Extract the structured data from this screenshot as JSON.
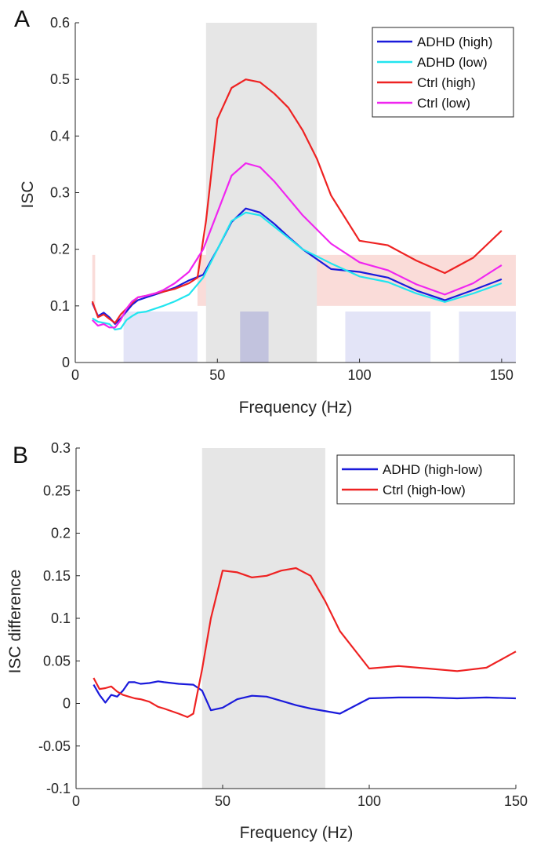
{
  "chart_data": [
    {
      "type": "line",
      "panel_label": "A",
      "xlabel": "Frequency (Hz)",
      "ylabel": "ISC",
      "xlim": [
        0,
        155
      ],
      "ylim": [
        0,
        0.6
      ],
      "xticks": [
        0,
        50,
        100,
        150
      ],
      "xtick_labels": [
        "0",
        "50",
        "100",
        "150"
      ],
      "yticks": [
        0,
        0.1,
        0.2,
        0.3,
        0.4,
        0.5,
        0.6
      ],
      "ytick_labels": [
        "0",
        "0.1",
        "0.2",
        "0.3",
        "0.4",
        "0.5",
        "0.6"
      ],
      "grid": false,
      "legend": "top-right",
      "gray_band": {
        "x": [
          46,
          85
        ],
        "y": [
          0,
          0.6
        ],
        "color": "#e6e6e6"
      },
      "red_band": {
        "x": [
          43,
          155
        ],
        "y": [
          0.1,
          0.19
        ],
        "color": "#fadcd9"
      },
      "red_band_edge": {
        "x": [
          6,
          7
        ],
        "y": [
          0.1,
          0.19
        ],
        "color": "#fadcd9"
      },
      "blue_bands": [
        {
          "x": [
            17,
            43
          ],
          "y": [
            0,
            0.09
          ],
          "color": "#e3e4f7"
        },
        {
          "x": [
            58,
            68
          ],
          "y": [
            0,
            0.09
          ],
          "color": "#c2c3de"
        },
        {
          "x": [
            95,
            125
          ],
          "y": [
            0,
            0.09
          ],
          "color": "#e3e4f7"
        },
        {
          "x": [
            135,
            155
          ],
          "y": [
            0,
            0.09
          ],
          "color": "#e3e4f7"
        }
      ],
      "series": [
        {
          "name": "ADHD (high)",
          "color": "#1a1adb",
          "x": [
            6,
            8,
            10,
            12,
            14,
            16,
            18,
            20,
            22,
            25,
            28,
            31,
            35,
            40,
            45,
            50,
            55,
            60,
            65,
            70,
            75,
            80,
            90,
            100,
            110,
            120,
            130,
            140,
            150
          ],
          "y": [
            0.105,
            0.082,
            0.088,
            0.08,
            0.068,
            0.078,
            0.09,
            0.102,
            0.11,
            0.115,
            0.12,
            0.125,
            0.132,
            0.145,
            0.155,
            0.2,
            0.248,
            0.272,
            0.265,
            0.245,
            0.222,
            0.2,
            0.165,
            0.16,
            0.15,
            0.127,
            0.11,
            0.128,
            0.147
          ]
        },
        {
          "name": "ADHD (low)",
          "color": "#22e5ef",
          "x": [
            6,
            8,
            10,
            12,
            14,
            16,
            18,
            20,
            22,
            25,
            28,
            31,
            35,
            40,
            45,
            50,
            55,
            60,
            65,
            70,
            75,
            80,
            90,
            100,
            110,
            120,
            130,
            140,
            150
          ],
          "y": [
            0.078,
            0.072,
            0.07,
            0.068,
            0.058,
            0.06,
            0.075,
            0.082,
            0.088,
            0.09,
            0.095,
            0.1,
            0.108,
            0.12,
            0.15,
            0.2,
            0.25,
            0.265,
            0.26,
            0.24,
            0.22,
            0.2,
            0.175,
            0.152,
            0.142,
            0.122,
            0.107,
            0.122,
            0.14
          ]
        },
        {
          "name": "Ctrl (high)",
          "color": "#ee2222",
          "x": [
            6,
            8,
            10,
            12,
            14,
            16,
            18,
            20,
            22,
            25,
            28,
            31,
            35,
            40,
            43,
            46,
            50,
            55,
            60,
            65,
            70,
            75,
            80,
            85,
            90,
            100,
            110,
            120,
            130,
            140,
            150
          ],
          "y": [
            0.108,
            0.08,
            0.085,
            0.077,
            0.07,
            0.085,
            0.095,
            0.105,
            0.115,
            0.118,
            0.122,
            0.125,
            0.13,
            0.14,
            0.15,
            0.25,
            0.43,
            0.485,
            0.5,
            0.495,
            0.475,
            0.45,
            0.41,
            0.36,
            0.295,
            0.215,
            0.207,
            0.18,
            0.158,
            0.185,
            0.233
          ]
        },
        {
          "name": "Ctrl (low)",
          "color": "#f025f0",
          "x": [
            6,
            8,
            10,
            12,
            14,
            16,
            18,
            20,
            22,
            25,
            28,
            31,
            35,
            40,
            45,
            50,
            55,
            60,
            65,
            70,
            75,
            80,
            90,
            100,
            110,
            120,
            130,
            140,
            150
          ],
          "y": [
            0.075,
            0.065,
            0.068,
            0.062,
            0.062,
            0.075,
            0.095,
            0.108,
            0.115,
            0.118,
            0.122,
            0.128,
            0.14,
            0.16,
            0.2,
            0.265,
            0.33,
            0.352,
            0.345,
            0.32,
            0.29,
            0.26,
            0.21,
            0.177,
            0.163,
            0.138,
            0.12,
            0.14,
            0.172
          ]
        }
      ]
    },
    {
      "type": "line",
      "panel_label": "B",
      "xlabel": "Frequency (Hz)",
      "ylabel": "ISC difference",
      "xlim": [
        0,
        150
      ],
      "ylim": [
        -0.1,
        0.3
      ],
      "xticks": [
        0,
        50,
        100,
        150
      ],
      "xtick_labels": [
        "0",
        "50",
        "100",
        "150"
      ],
      "yticks": [
        -0.1,
        -0.05,
        0,
        0.05,
        0.1,
        0.15,
        0.2,
        0.25,
        0.3
      ],
      "ytick_labels": [
        "-0.1",
        "-0.05",
        "0",
        "0.05",
        "0.1",
        "0.15",
        "0.2",
        "0.25",
        "0.3"
      ],
      "grid": false,
      "legend": "top-right",
      "gray_band": {
        "x": [
          43,
          85
        ],
        "y": [
          -0.1,
          0.3
        ],
        "color": "#e6e6e6"
      },
      "series": [
        {
          "name": "ADHD (high-low)",
          "color": "#1a1adb",
          "x": [
            6,
            8,
            10,
            12,
            14,
            16,
            18,
            20,
            22,
            25,
            28,
            30,
            35,
            40,
            43,
            46,
            50,
            55,
            60,
            65,
            70,
            75,
            80,
            90,
            100,
            110,
            120,
            130,
            140,
            150
          ],
          "y": [
            0.022,
            0.01,
            0.001,
            0.01,
            0.008,
            0.015,
            0.025,
            0.025,
            0.023,
            0.024,
            0.026,
            0.025,
            0.023,
            0.022,
            0.015,
            -0.008,
            -0.005,
            0.005,
            0.009,
            0.008,
            0.003,
            -0.002,
            -0.006,
            -0.012,
            0.006,
            0.007,
            0.007,
            0.006,
            0.007,
            0.006
          ]
        },
        {
          "name": "Ctrl (high-low)",
          "color": "#ee2222",
          "x": [
            6,
            8,
            10,
            12,
            14,
            16,
            18,
            20,
            22,
            25,
            28,
            30,
            35,
            38,
            40,
            43,
            46,
            50,
            55,
            60,
            65,
            70,
            75,
            80,
            85,
            90,
            100,
            110,
            120,
            130,
            140,
            150
          ],
          "y": [
            0.03,
            0.017,
            0.018,
            0.02,
            0.014,
            0.01,
            0.008,
            0.006,
            0.005,
            0.002,
            -0.004,
            -0.006,
            -0.012,
            -0.016,
            -0.012,
            0.04,
            0.1,
            0.156,
            0.154,
            0.148,
            0.15,
            0.156,
            0.159,
            0.15,
            0.12,
            0.085,
            0.041,
            0.044,
            0.041,
            0.038,
            0.042,
            0.061
          ]
        }
      ]
    }
  ]
}
